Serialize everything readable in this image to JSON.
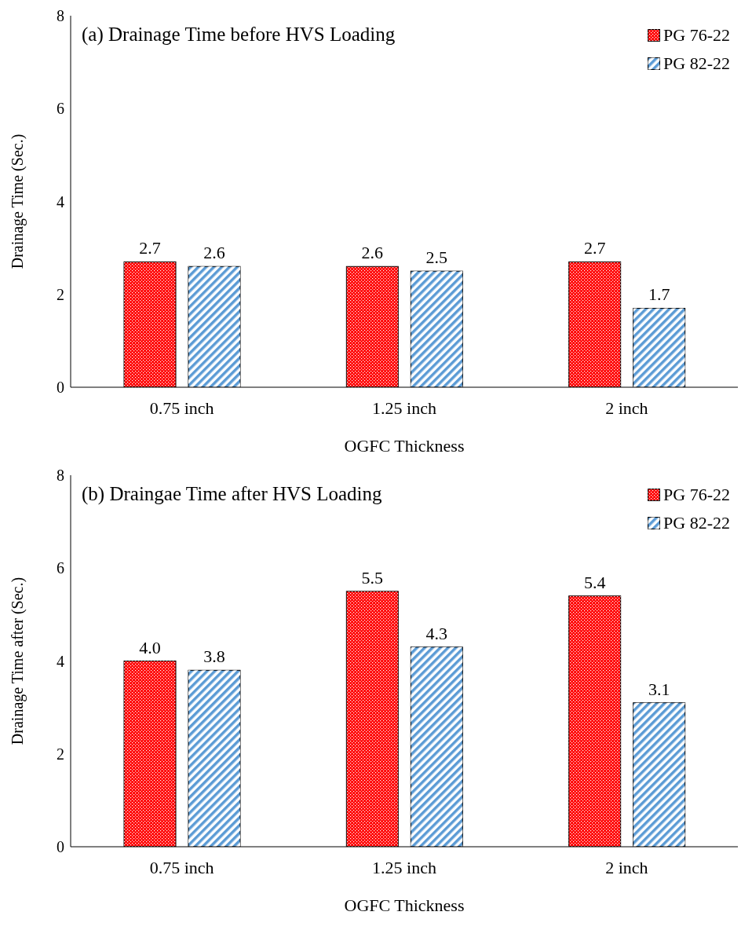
{
  "chart_data": [
    {
      "type": "bar",
      "title": "(a) Drainage Time before HVS Loading",
      "xlabel": "OGFC Thickness",
      "ylabel": "Drainage Time (Sec.)",
      "categories": [
        "0.75 inch",
        "1.25 inch",
        "2 inch"
      ],
      "series": [
        {
          "name": "PG 76-22",
          "color": "#ff0000",
          "values": [
            2.7,
            2.6,
            2.7
          ],
          "value_labels": [
            "2.7",
            "2.6",
            "2.7"
          ]
        },
        {
          "name": "PG 82-22",
          "color": "#5b9bd5",
          "values": [
            2.6,
            2.5,
            1.7
          ],
          "value_labels": [
            "2.6",
            "2.5",
            "1.7"
          ]
        }
      ],
      "ylim": [
        0,
        8
      ],
      "yticks": [
        0,
        2,
        4,
        6,
        8
      ],
      "grid": false,
      "legend": "top right"
    },
    {
      "type": "bar",
      "title": "(b) Draingae Time after HVS Loading",
      "xlabel": "OGFC Thickness",
      "ylabel": "Drainage Time after (Sec.)",
      "categories": [
        "0.75 inch",
        "1.25 inch",
        "2 inch"
      ],
      "series": [
        {
          "name": "PG 76-22",
          "color": "#ff0000",
          "values": [
            4.0,
            5.5,
            5.4
          ],
          "value_labels": [
            "4.0",
            "5.5",
            "5.4"
          ]
        },
        {
          "name": "PG 82-22",
          "color": "#5b9bd5",
          "values": [
            3.8,
            4.3,
            3.1
          ],
          "value_labels": [
            "3.8",
            "4.3",
            "3.1"
          ]
        }
      ],
      "ylim": [
        0,
        8
      ],
      "yticks": [
        0,
        2,
        4,
        6,
        8
      ],
      "grid": false,
      "legend": "top right"
    }
  ]
}
